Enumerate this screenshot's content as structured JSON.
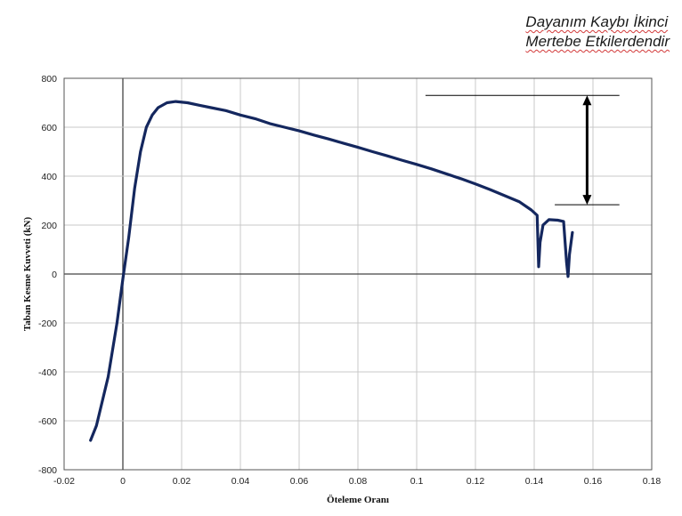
{
  "annotation": {
    "line1": "Dayanım Kaybı İkinci",
    "line2": "Mertebe Etkilerdendir"
  },
  "colors": {
    "series": "#14275e",
    "grid": "#c8c8c8",
    "axis": "#555555",
    "zero_line": "#444444"
  },
  "chart_data": {
    "type": "line",
    "title": "",
    "xlabel": "Öteleme Oranı",
    "ylabel": "Taban Kesme Kuvveti (kN)",
    "xlim": [
      -0.02,
      0.18
    ],
    "ylim": [
      -800,
      800
    ],
    "xticks": [
      -0.02,
      0,
      0.02,
      0.04,
      0.06,
      0.08,
      0.1,
      0.12,
      0.14,
      0.16,
      0.18
    ],
    "xtick_labels": [
      "-0.02",
      "0",
      "0.02",
      "0.04",
      "0.06",
      "0.08",
      "0.1",
      "0.12",
      "0.14",
      "0.16",
      "0.18"
    ],
    "yticks": [
      -800,
      -600,
      -400,
      -200,
      0,
      200,
      400,
      600,
      800
    ],
    "ytick_labels": [
      "-800",
      "-600",
      "-400",
      "-200",
      "0",
      "200",
      "400",
      "600",
      "800"
    ],
    "grid": true,
    "series": [
      {
        "values": [
          [
            -0.011,
            -680
          ],
          [
            -0.009,
            -620
          ],
          [
            -0.005,
            -420
          ],
          [
            -0.002,
            -200
          ],
          [
            0.0,
            -20
          ],
          [
            0.002,
            150
          ],
          [
            0.004,
            350
          ],
          [
            0.006,
            500
          ],
          [
            0.008,
            600
          ],
          [
            0.01,
            650
          ],
          [
            0.012,
            680
          ],
          [
            0.015,
            700
          ],
          [
            0.018,
            705
          ],
          [
            0.022,
            700
          ],
          [
            0.026,
            690
          ],
          [
            0.03,
            680
          ],
          [
            0.035,
            668
          ],
          [
            0.04,
            650
          ],
          [
            0.045,
            635
          ],
          [
            0.05,
            615
          ],
          [
            0.055,
            600
          ],
          [
            0.06,
            585
          ],
          [
            0.065,
            568
          ],
          [
            0.07,
            552
          ],
          [
            0.075,
            535
          ],
          [
            0.08,
            518
          ],
          [
            0.085,
            500
          ],
          [
            0.09,
            483
          ],
          [
            0.095,
            465
          ],
          [
            0.1,
            448
          ],
          [
            0.105,
            430
          ],
          [
            0.11,
            410
          ],
          [
            0.115,
            390
          ],
          [
            0.12,
            368
          ],
          [
            0.125,
            345
          ],
          [
            0.13,
            320
          ],
          [
            0.135,
            295
          ],
          [
            0.139,
            262
          ],
          [
            0.141,
            240
          ],
          [
            0.1415,
            30
          ],
          [
            0.142,
            130
          ],
          [
            0.143,
            200
          ],
          [
            0.145,
            222
          ],
          [
            0.148,
            220
          ],
          [
            0.15,
            215
          ],
          [
            0.151,
            50
          ],
          [
            0.1515,
            -10
          ],
          [
            0.152,
            80
          ],
          [
            0.153,
            170
          ]
        ]
      }
    ],
    "reference_lines": {
      "upper_y": 730,
      "lower_y": 283,
      "upper_x_range": [
        0.103,
        0.169
      ],
      "lower_x_range": [
        0.147,
        0.169
      ],
      "arrow_x": 0.158
    }
  }
}
